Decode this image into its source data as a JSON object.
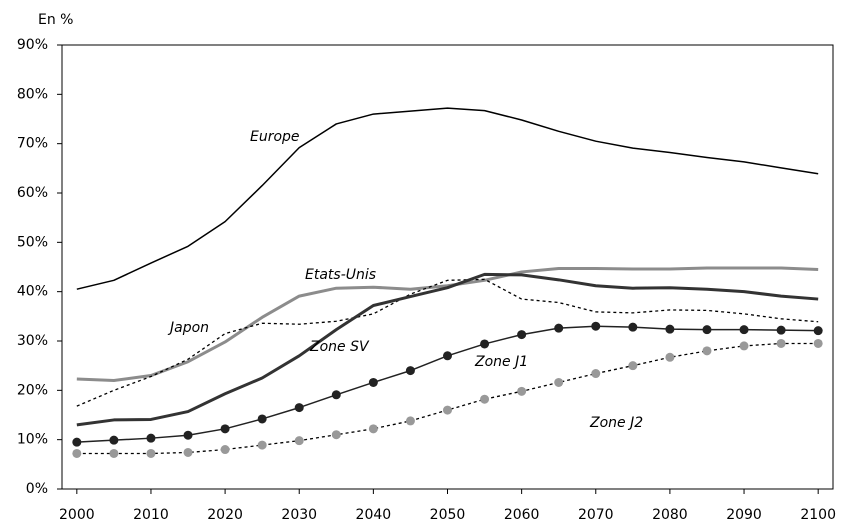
{
  "chart_data": {
    "type": "line",
    "y_label": "En %",
    "x": [
      2000,
      2005,
      2010,
      2015,
      2020,
      2025,
      2030,
      2035,
      2040,
      2045,
      2050,
      2055,
      2060,
      2065,
      2070,
      2075,
      2080,
      2085,
      2090,
      2095,
      2100
    ],
    "xlim": [
      1998,
      2102
    ],
    "xticks": [
      2000,
      2010,
      2020,
      2030,
      2040,
      2050,
      2060,
      2070,
      2080,
      2090,
      2100
    ],
    "ylim": [
      0,
      90
    ],
    "yticks": [
      {
        "value": 0,
        "label": "0%"
      },
      {
        "value": 10,
        "label": "10%"
      },
      {
        "value": 20,
        "label": "20%"
      },
      {
        "value": 30,
        "label": "30%"
      },
      {
        "value": 40,
        "label": "40%"
      },
      {
        "value": 50,
        "label": "50%"
      },
      {
        "value": 60,
        "label": "60%"
      },
      {
        "value": 70,
        "label": "70%"
      },
      {
        "value": 80,
        "label": "80%"
      },
      {
        "value": 90,
        "label": "90%"
      }
    ],
    "series": [
      {
        "name": "Europe",
        "color": "#000000",
        "line_width": 1.5,
        "dashed": false,
        "marker": false,
        "values": [
          40.5,
          42.3,
          45.8,
          49.2,
          54.2,
          61.5,
          69.2,
          74,
          76,
          76.6,
          77.2,
          76.7,
          74.8,
          72.5,
          70.5,
          69.1,
          68.2,
          67.2,
          66.3,
          65.1,
          63.9
        ]
      },
      {
        "name": "Etats-Unis",
        "color": "#8c8c8c",
        "line_width": 3,
        "dashed": false,
        "marker": false,
        "values": [
          22.3,
          22,
          23,
          25.8,
          29.8,
          34.8,
          39.1,
          40.7,
          40.9,
          40.5,
          41.2,
          42.3,
          44,
          44.7,
          44.7,
          44.6,
          44.6,
          44.8,
          44.8,
          44.8,
          44.5
        ]
      },
      {
        "name": "Japon",
        "color": "#000000",
        "line_width": 1.3,
        "dashed": true,
        "marker": false,
        "values": [
          16.8,
          20,
          22.8,
          26.3,
          31.5,
          33.6,
          33.4,
          34,
          35.5,
          39.5,
          42.3,
          42.5,
          38.5,
          37.8,
          35.9,
          35.7,
          36.3,
          36.2,
          35.5,
          34.5,
          33.9
        ]
      },
      {
        "name": "Zone SV",
        "color": "#333333",
        "line_width": 3,
        "dashed": false,
        "marker": false,
        "values": [
          13,
          14,
          14.1,
          15.7,
          19.3,
          22.5,
          27,
          32.3,
          37.2,
          39,
          40.8,
          43.5,
          43.4,
          42.4,
          41.2,
          40.7,
          40.8,
          40.5,
          40,
          39.1,
          38.5
        ]
      },
      {
        "name": "Zone J1",
        "color": "#222222",
        "line_width": 1.5,
        "dashed": false,
        "marker": true,
        "marker_color": "#222222",
        "values": [
          9.5,
          9.9,
          10.3,
          10.9,
          12.2,
          14.2,
          16.5,
          19.1,
          21.6,
          24,
          27,
          29.4,
          31.3,
          32.6,
          33,
          32.8,
          32.4,
          32.3,
          32.3,
          32.2,
          32.1
        ]
      },
      {
        "name": "Zone J2",
        "color": "#000000",
        "line_width": 1.3,
        "dashed": true,
        "marker": true,
        "marker_color": "#999999",
        "values": [
          7.2,
          7.2,
          7.2,
          7.4,
          8,
          8.9,
          9.8,
          11,
          12.2,
          13.8,
          16,
          18.2,
          19.8,
          21.6,
          23.4,
          25,
          26.7,
          28,
          29,
          29.5,
          29.5
        ]
      }
    ]
  }
}
